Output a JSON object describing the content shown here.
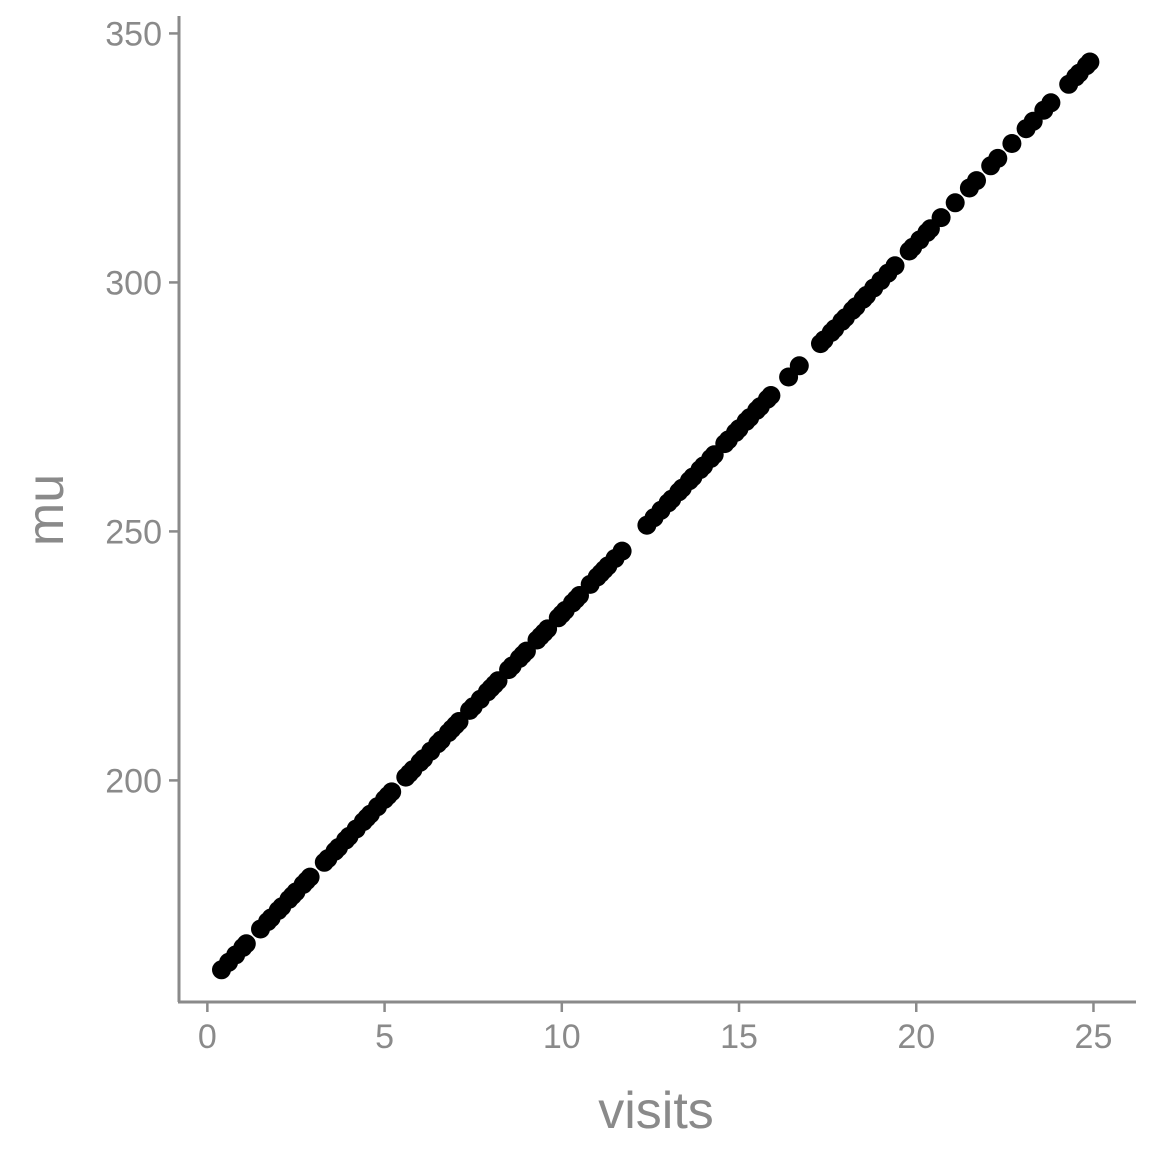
{
  "chart_data": {
    "type": "scatter",
    "title": "",
    "xlabel": "visits",
    "ylabel": "mu",
    "xlim": [
      -0.8,
      26.2
    ],
    "ylim": [
      155.5,
      353.5
    ],
    "x_ticks": [
      0,
      5,
      10,
      15,
      20,
      25
    ],
    "y_ticks": [
      200,
      250,
      300,
      350
    ],
    "x_tick_labels": [
      "0",
      "5",
      "10",
      "15",
      "20",
      "25"
    ],
    "y_tick_labels": [
      "200",
      "250",
      "300",
      "350"
    ],
    "grid": false,
    "legend": "none",
    "point_color": "#000000",
    "axis_color": "#8a8a8a",
    "intercept": 159.0,
    "slope": 7.44,
    "x": [
      0.4,
      0.6,
      0.8,
      1.0,
      1.1,
      1.5,
      1.7,
      1.8,
      2.0,
      2.1,
      2.3,
      2.4,
      2.5,
      2.7,
      2.8,
      2.9,
      3.3,
      3.4,
      3.6,
      3.7,
      3.9,
      4.0,
      4.2,
      4.4,
      4.5,
      4.6,
      4.8,
      5.0,
      5.1,
      5.2,
      5.6,
      5.7,
      5.8,
      6.0,
      6.1,
      6.3,
      6.5,
      6.6,
      6.8,
      6.9,
      7.0,
      7.1,
      7.4,
      7.5,
      7.7,
      7.9,
      8.0,
      8.1,
      8.2,
      8.5,
      8.6,
      8.8,
      8.9,
      9.0,
      9.3,
      9.4,
      9.5,
      9.6,
      9.9,
      10.0,
      10.1,
      10.3,
      10.4,
      10.5,
      10.8,
      11.0,
      11.1,
      11.2,
      11.3,
      11.5,
      11.7,
      12.4,
      12.6,
      12.8,
      13.0,
      13.1,
      13.3,
      13.4,
      13.6,
      13.7,
      13.9,
      14.0,
      14.2,
      14.3,
      14.6,
      14.7,
      14.9,
      15.0,
      15.2,
      15.3,
      15.5,
      15.6,
      15.8,
      15.9,
      16.4,
      16.7,
      17.3,
      17.4,
      17.6,
      17.7,
      17.9,
      18.0,
      18.2,
      18.3,
      18.5,
      18.6,
      18.8,
      19.0,
      19.2,
      19.4,
      19.8,
      19.9,
      20.1,
      20.3,
      20.4,
      20.7,
      21.1,
      21.5,
      21.7,
      22.1,
      22.3,
      22.7,
      23.1,
      23.3,
      23.6,
      23.8,
      24.3,
      24.5,
      24.6,
      24.8,
      24.9
    ]
  }
}
